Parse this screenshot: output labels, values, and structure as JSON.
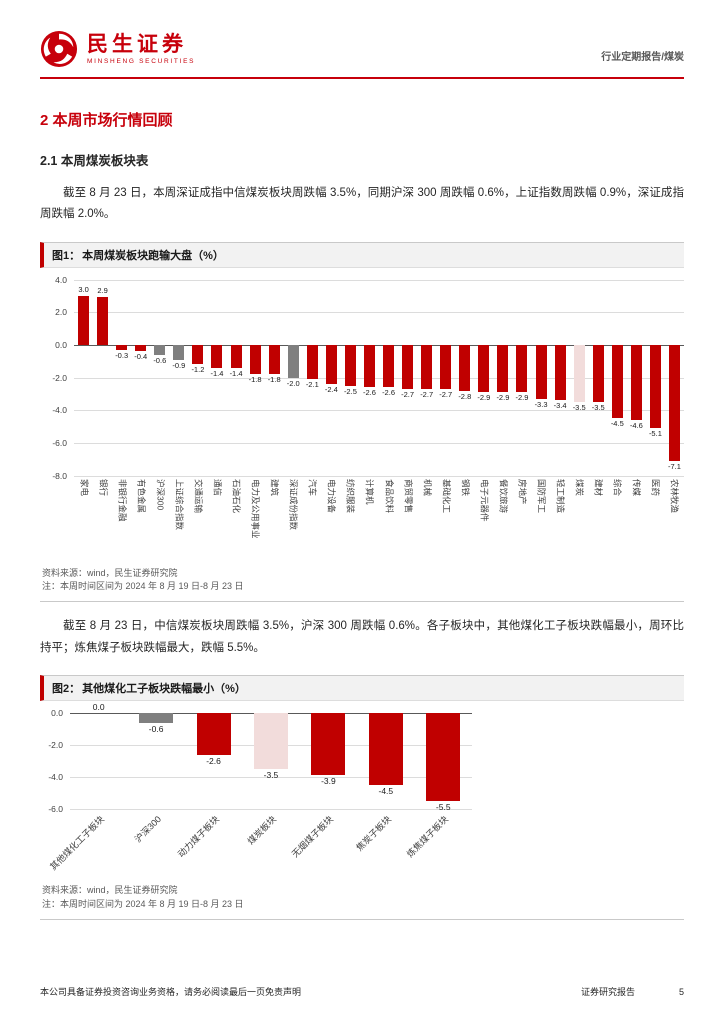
{
  "header": {
    "brand_cn": "民生证券",
    "brand_en": "MINSHENG SECURITIES",
    "report_type": "行业定期报告/煤炭",
    "brand_color": "#C7000B"
  },
  "sections": {
    "h2": "2 本周市场行情回顾",
    "h3": "2.1 本周煤炭板块表",
    "p1": "截至 8 月 23 日，本周深证成指中信煤炭板块周跌幅 3.5%，同期沪深 300 周跌幅 0.6%，上证指数周跌幅 0.9%，深证成指周跌幅 2.0%。",
    "p2": "截至 8 月 23 日，中信煤炭板块周跌幅 3.5%，沪深 300 周跌幅 0.6%。各子板块中，其他煤化工子板块跌幅最小，周环比持平；炼焦煤子板块跌幅最大，跌幅 5.5%。"
  },
  "figures": [
    {
      "label": "图1：",
      "title": "本周煤炭板块跑输大盘（%）",
      "source": "资料来源：wind，民生证券研究院",
      "note": "注：本周时间区间为 2024 年 8 月 19 日-8 月 23 日",
      "chart_data": {
        "type": "bar",
        "title": "本周煤炭板块跑输大盘（%）",
        "ymax": 4,
        "ymin": -8,
        "yticks": [
          "4.0",
          "2.0",
          "0.0",
          "-2.0",
          "-4.0",
          "-6.0",
          "-8.0"
        ],
        "grid": true,
        "categories": [
          "家电",
          "银行",
          "非银行金融",
          "有色金属",
          "沪深300",
          "上证综合指数",
          "交通运输",
          "通信",
          "石油石化",
          "电力及公用事业",
          "建筑",
          "深证成份指数",
          "汽车",
          "电力设备",
          "纺织服装",
          "计算机",
          "食品饮料",
          "商贸零售",
          "机械",
          "基础化工",
          "钢铁",
          "电子元器件",
          "餐饮旅游",
          "房地产",
          "国防军工",
          "轻工制造",
          "煤炭",
          "建材",
          "综合",
          "传媒",
          "医药",
          "农林牧渔"
        ],
        "values": [
          3.0,
          2.9,
          -0.3,
          -0.4,
          -0.6,
          -0.9,
          -1.2,
          -1.4,
          -1.4,
          -1.8,
          -1.8,
          -2.0,
          -2.1,
          -2.4,
          -2.5,
          -2.6,
          -2.6,
          -2.7,
          -2.7,
          -2.7,
          -2.8,
          -2.9,
          -2.9,
          -2.9,
          -3.3,
          -3.4,
          -3.5,
          -3.5,
          -4.5,
          -4.6,
          -5.1,
          -7.1
        ],
        "bar_roles": [
          "red",
          "red",
          "red",
          "red",
          "gray",
          "gray",
          "red",
          "red",
          "red",
          "red",
          "red",
          "gray",
          "red",
          "red",
          "red",
          "red",
          "red",
          "red",
          "red",
          "red",
          "red",
          "red",
          "red",
          "red",
          "red",
          "red",
          "pink",
          "red",
          "red",
          "red",
          "red",
          "red"
        ]
      }
    },
    {
      "label": "图2：",
      "title": "其他煤化工子板块跌幅最小（%）",
      "source": "资料来源：wind，民生证券研究院",
      "note": "注：本周时间区间为 2024 年 8 月 19 日-8 月 23 日",
      "chart_data": {
        "type": "bar",
        "title": "其他煤化工子板块跌幅最小（%）",
        "ymax": 0,
        "ymin": -6,
        "yticks": [
          "0.0",
          "-2.0",
          "-4.0",
          "-6.0"
        ],
        "grid": true,
        "categories": [
          "其他煤化工子板块",
          "沪深300",
          "动力煤子板块",
          "煤炭板块",
          "无烟煤子板块",
          "焦炭子板块",
          "炼焦煤子板块"
        ],
        "values": [
          0.0,
          -0.6,
          -2.6,
          -3.5,
          -3.9,
          -4.5,
          -5.5
        ],
        "bar_roles": [
          "gray",
          "gray",
          "red",
          "pink",
          "red",
          "red",
          "red"
        ]
      }
    }
  ],
  "palette": {
    "red": "#C00000",
    "gray": "#7F7F7F",
    "pink": "#F2DCDB"
  },
  "footer": {
    "disclaimer": "本公司具备证券投资咨询业务资格，请务必阅读最后一页免责声明",
    "report_tag": "证券研究报告",
    "page_number": "5"
  }
}
